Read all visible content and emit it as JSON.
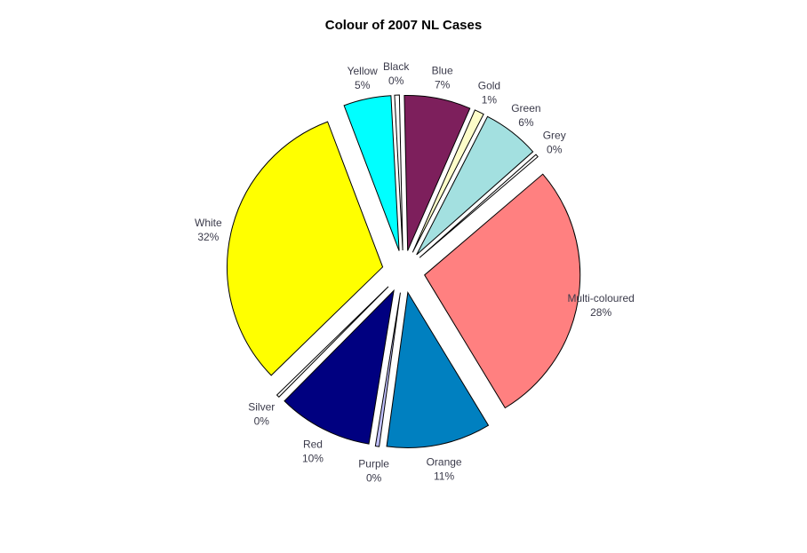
{
  "chart_data": {
    "type": "pie",
    "title": "Colour of 2007 NL Cases",
    "direction": "clockwise",
    "start_angle_deg": -93,
    "exploded": true,
    "slices": [
      {
        "label": "Black",
        "percent_label": "0%",
        "value": 0.5,
        "color": "#ffffff"
      },
      {
        "label": "Blue",
        "percent_label": "7%",
        "value": 7,
        "color": "#7d1f5c"
      },
      {
        "label": "Gold",
        "percent_label": "1%",
        "value": 1,
        "color": "#fdfdc9"
      },
      {
        "label": "Green",
        "percent_label": "6%",
        "value": 6,
        "color": "#a3e0e0"
      },
      {
        "label": "Grey",
        "percent_label": "0%",
        "value": 0.3,
        "color": "#ffffff"
      },
      {
        "label": "Multi-coloured",
        "percent_label": "28%",
        "value": 28,
        "color": "#ff8080"
      },
      {
        "label": "Orange",
        "percent_label": "11%",
        "value": 11,
        "color": "#0080c0"
      },
      {
        "label": "Purple",
        "percent_label": "0%",
        "value": 0.4,
        "color": "#c0c0ff"
      },
      {
        "label": "Red",
        "percent_label": "10%",
        "value": 10,
        "color": "#000080"
      },
      {
        "label": "Silver",
        "percent_label": "0%",
        "value": 0.3,
        "color": "#ffffff"
      },
      {
        "label": "White",
        "percent_label": "32%",
        "value": 32,
        "color": "#ffff00"
      },
      {
        "label": "Yellow",
        "percent_label": "5%",
        "value": 5,
        "color": "#00ffff"
      }
    ]
  }
}
